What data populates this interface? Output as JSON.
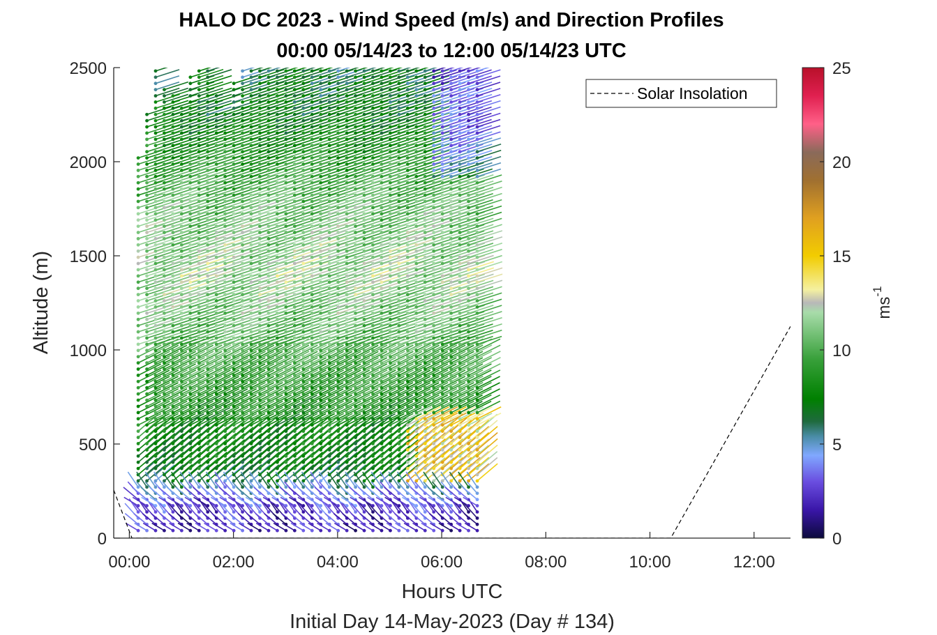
{
  "chart_data": {
    "type": "wind-barb-profile",
    "title": "HALO DC 2023 - Wind Speed (m/s) and Direction Profiles",
    "subtitle": "00:00 05/14/23 to 12:00 05/14/23  UTC",
    "xlabel": "Hours UTC",
    "xlabel2": "Initial Day 14-May-2023 (Day # 134)",
    "ylabel": "Altitude (m)",
    "xlim_hours": [
      -0.3,
      12.7
    ],
    "ylim": [
      0,
      2500
    ],
    "x_ticks": [
      {
        "value": 0,
        "label": "00:00"
      },
      {
        "value": 2,
        "label": "02:00"
      },
      {
        "value": 4,
        "label": "04:00"
      },
      {
        "value": 6,
        "label": "06:00"
      },
      {
        "value": 8,
        "label": "08:00"
      },
      {
        "value": 10,
        "label": "10:00"
      },
      {
        "value": 12,
        "label": "12:00"
      }
    ],
    "y_ticks": [
      0,
      500,
      1000,
      1500,
      2000,
      2500
    ],
    "colorbar": {
      "label": "ms",
      "label_exp": "-1",
      "range": [
        0,
        25
      ],
      "ticks": [
        0,
        5,
        10,
        15,
        20,
        25
      ],
      "stops": [
        {
          "v": 0,
          "c": "#0c0a3c"
        },
        {
          "v": 1.5,
          "c": "#3a16a8"
        },
        {
          "v": 3,
          "c": "#6a4ee0"
        },
        {
          "v": 4.4,
          "c": "#80a8ff"
        },
        {
          "v": 5.4,
          "c": "#4a8ca6"
        },
        {
          "v": 6.2,
          "c": "#1f6a3e"
        },
        {
          "v": 7.4,
          "c": "#008000"
        },
        {
          "v": 9.5,
          "c": "#38a03a"
        },
        {
          "v": 12.0,
          "c": "#a8dcaa"
        },
        {
          "v": 12.5,
          "c": "#b8b8b8"
        },
        {
          "v": 13.2,
          "c": "#f4f0a0"
        },
        {
          "v": 15.0,
          "c": "#f2cc00"
        },
        {
          "v": 17.0,
          "c": "#e0a020"
        },
        {
          "v": 19.0,
          "c": "#a07030"
        },
        {
          "v": 20.5,
          "c": "#8a6a5a"
        },
        {
          "v": 22.0,
          "c": "#ff6088"
        },
        {
          "v": 23.5,
          "c": "#e02050"
        },
        {
          "v": 25,
          "c": "#b8102a"
        }
      ]
    },
    "legend": {
      "label": "Solar Insolation",
      "position": "top-right"
    },
    "solar_insolation": {
      "x": [
        -0.3,
        0.05,
        10.4,
        12.7
      ],
      "y": [
        255,
        0,
        0,
        1125
      ]
    },
    "profiles": {
      "time_start_hours": 0.17,
      "time_end_hours": 6.8,
      "time_step_hours": 0.167,
      "altitude_min_m": 40,
      "altitude_step_m": 33,
      "altitude_top_by_time": [
        {
          "t": 0.17,
          "top": 2040
        },
        {
          "t": 0.5,
          "top": 2500
        },
        {
          "t": 0.7,
          "top": 2400
        },
        {
          "t": 1.0,
          "top": 2300
        },
        {
          "t": 1.2,
          "top": 2500
        },
        {
          "t": 1.5,
          "top": 2500
        },
        {
          "t": 1.8,
          "top": 2250
        },
        {
          "t": 2.1,
          "top": 2500
        },
        {
          "t": 6.8,
          "top": 2500
        }
      ],
      "speed_profile": [
        {
          "z": 0,
          "s": 2.0
        },
        {
          "z": 150,
          "s": 2.5
        },
        {
          "z": 260,
          "s": 5.0
        },
        {
          "z": 350,
          "s": 7.5
        },
        {
          "z": 700,
          "s": 8.5
        },
        {
          "z": 1100,
          "s": 10.5
        },
        {
          "z": 1400,
          "s": 11.8
        },
        {
          "z": 1800,
          "s": 10.5
        },
        {
          "z": 2200,
          "s": 7.5
        },
        {
          "z": 2500,
          "s": 6.5
        }
      ]
    }
  }
}
